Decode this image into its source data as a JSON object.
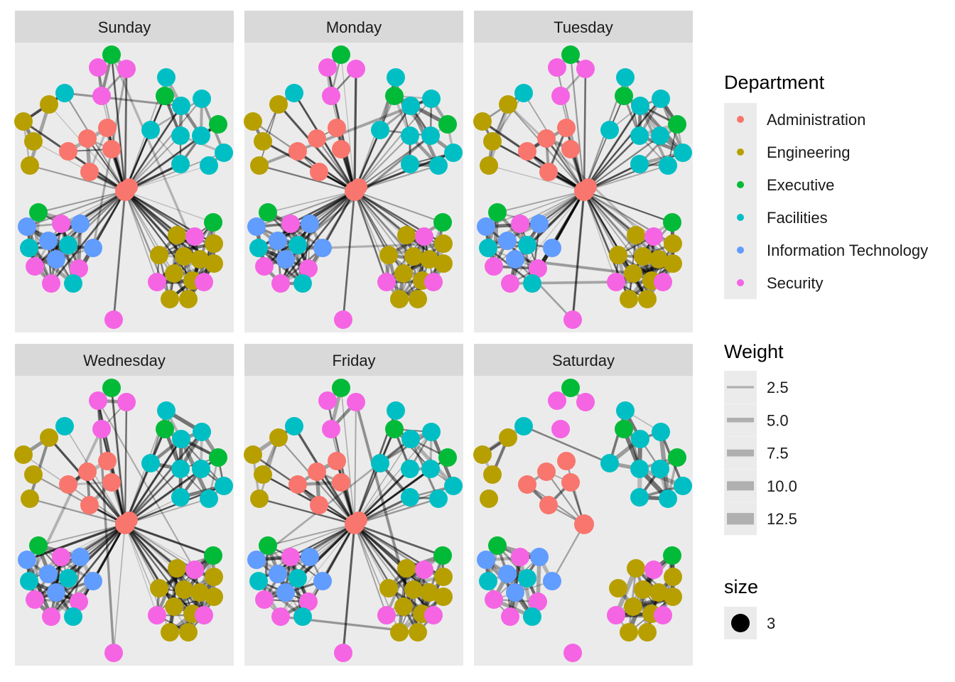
{
  "chart_data": {
    "type": "network",
    "facets": [
      {
        "label": "Sunday"
      },
      {
        "label": "Monday"
      },
      {
        "label": "Tuesday"
      },
      {
        "label": "Wednesday"
      },
      {
        "label": "Friday"
      },
      {
        "label": "Saturday"
      }
    ],
    "legends": {
      "department": {
        "title": "Department",
        "items": [
          {
            "label": "Administration",
            "color": "#F8766D"
          },
          {
            "label": "Engineering",
            "color": "#B79F00"
          },
          {
            "label": "Executive",
            "color": "#00BA38"
          },
          {
            "label": "Facilities",
            "color": "#00BFC4"
          },
          {
            "label": "Information Technology",
            "color": "#619CFF"
          },
          {
            "label": "Security",
            "color": "#F564E3"
          }
        ]
      },
      "weight": {
        "title": "Weight",
        "items": [
          {
            "label": "2.5",
            "value": 2.5
          },
          {
            "label": "5.0",
            "value": 5.0
          },
          {
            "label": "7.5",
            "value": 7.5
          },
          {
            "label": "10.0",
            "value": 10.0
          },
          {
            "label": "12.5",
            "value": 12.5
          }
        ]
      },
      "size": {
        "title": "size",
        "items": [
          {
            "label": "3",
            "value": 3
          }
        ]
      }
    },
    "edge_color": "#000000",
    "panel_background": "#EBEBEB",
    "strip_background": "#D9D9D9"
  }
}
